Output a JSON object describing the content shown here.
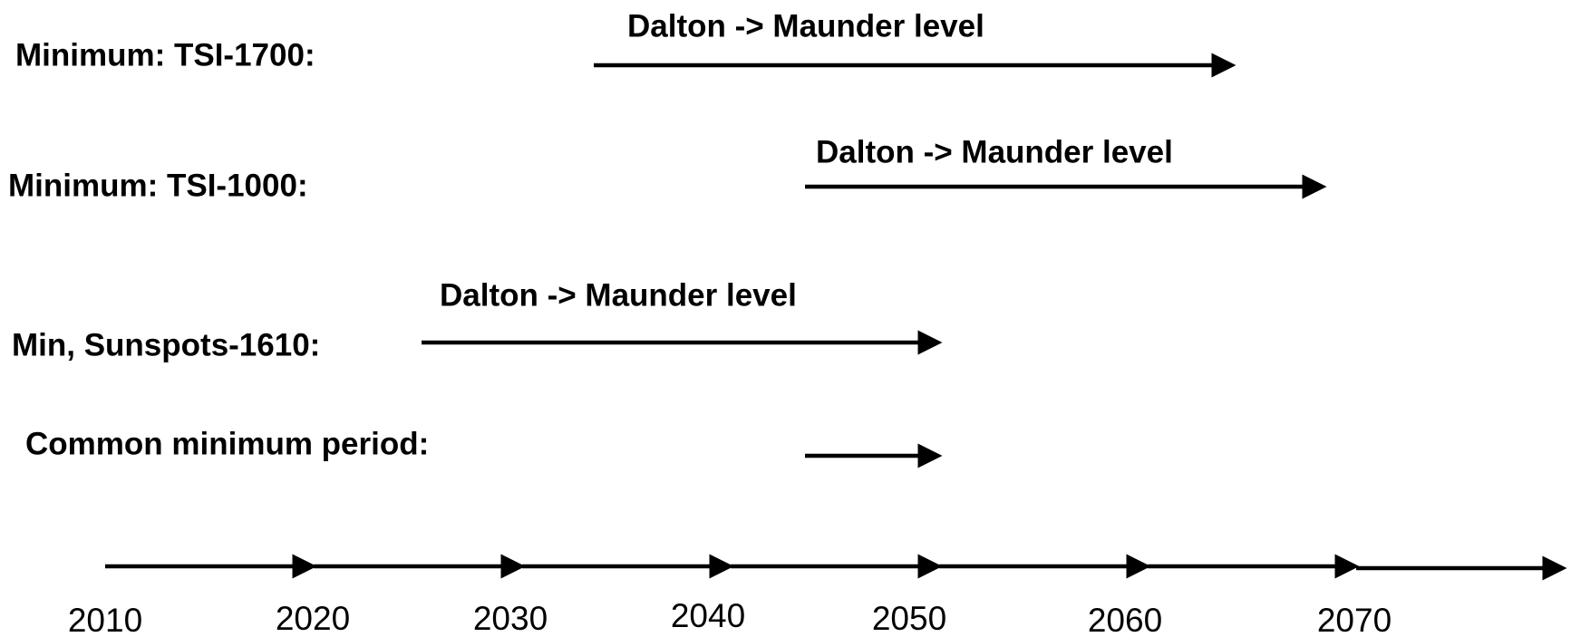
{
  "rows": [
    {
      "label": "Minimum: TSI-1700:",
      "annotation": "Dalton -> Maunder level"
    },
    {
      "label": "Minimum: TSI-1000:",
      "annotation": "Dalton -> Maunder level"
    },
    {
      "label": "Min, Sunspots-1610:",
      "annotation": "Dalton -> Maunder level"
    },
    {
      "label": "Common minimum period:"
    }
  ],
  "axis": {
    "labels": [
      "2010",
      "2020",
      "2030",
      "2040",
      "2050",
      "2060",
      "2070"
    ]
  }
}
